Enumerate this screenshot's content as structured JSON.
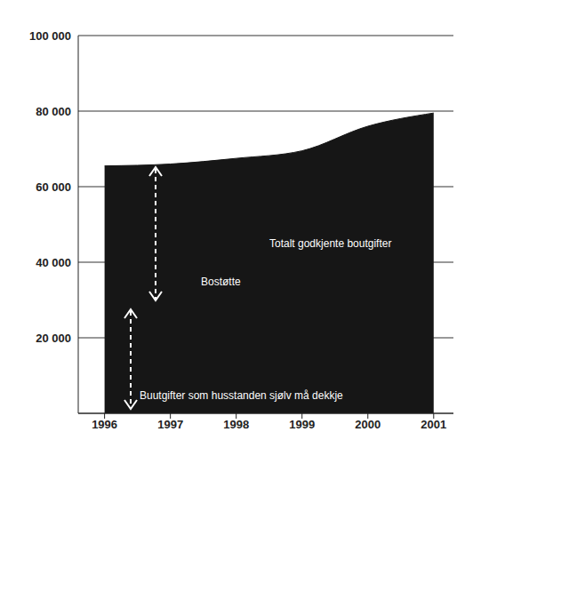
{
  "chart_data": {
    "type": "area",
    "x": [
      1996,
      1997,
      1998,
      1999,
      2000,
      2001
    ],
    "values": [
      65500,
      66000,
      67500,
      69500,
      76000,
      79500
    ],
    "color": "#161616",
    "xlim": [
      1995.6,
      2001.3
    ],
    "xticks": [
      1996,
      1997,
      1998,
      1999,
      2000,
      2001
    ],
    "ylim": [
      0,
      100000
    ],
    "yticks": [
      {
        "value": 20000,
        "label": "20 000"
      },
      {
        "value": 40000,
        "label": "40 000"
      },
      {
        "value": 60000,
        "label": "60 000"
      },
      {
        "value": 80000,
        "label": "80 000"
      },
      {
        "value": 100000,
        "label": "100 000"
      }
    ],
    "grid": true,
    "annotations": [
      "Totalt godkjente boutgifter",
      "Bostøtte",
      "Buutgifter som husstanden sjølv må dekkje"
    ]
  }
}
